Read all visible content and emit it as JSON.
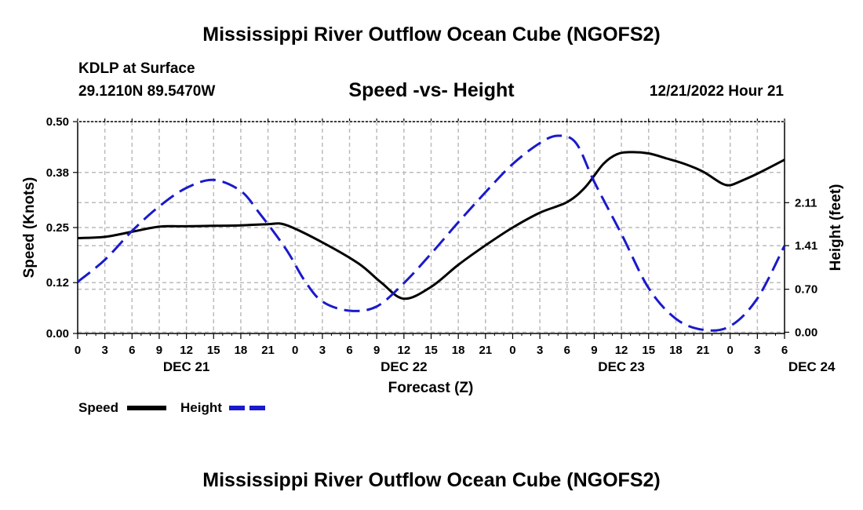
{
  "header": {
    "title": "Mississippi River Outflow Ocean Cube (NGOFS2)",
    "station": "KDLP at Surface",
    "coords": "29.1210N  89.5470W",
    "subtitle": "Speed -vs- Height",
    "datetime": "12/21/2022 Hour 21",
    "footer_title": "Mississippi River Outflow Ocean Cube (NGOFS2)"
  },
  "chart_data": {
    "type": "line",
    "xlabel": "Forecast (Z)",
    "ylabel": "Speed (Knots)",
    "y2label": "Height (feet)",
    "x_ticks": [
      "0",
      "3",
      "6",
      "9",
      "12",
      "15",
      "18",
      "21",
      "0",
      "3",
      "6",
      "9",
      "12",
      "15",
      "18",
      "21",
      "0",
      "3",
      "6",
      "9",
      "12",
      "15",
      "18",
      "21",
      "0",
      "3",
      "6"
    ],
    "day_labels": [
      {
        "label": "DEC 21",
        "hour": 12
      },
      {
        "label": "DEC 22",
        "hour": 36
      },
      {
        "label": "DEC 23",
        "hour": 60
      },
      {
        "label": "DEC 24",
        "hour": 81
      }
    ],
    "xlim": [
      0,
      78
    ],
    "ylim": [
      0,
      0.5
    ],
    "y_ticks": [
      "0.00",
      "0.12",
      "0.25",
      "0.38",
      "0.50"
    ],
    "y2lim": [
      -0.02,
      3.43
    ],
    "y2_ticks": [
      "0.00",
      "0.70",
      "1.41",
      "2.11"
    ],
    "grid": true,
    "legend_position": "bottom-left",
    "series": [
      {
        "name": "Speed",
        "axis": "left",
        "color": "#000000",
        "dash": "solid",
        "x": [
          0,
          3,
          6,
          9,
          12,
          15,
          18,
          21,
          23,
          27,
          31,
          33.5,
          36,
          39,
          42,
          45,
          48,
          51,
          54,
          56,
          58,
          59.5,
          61,
          63,
          65,
          67,
          69,
          71,
          72,
          73,
          75,
          78
        ],
        "values": [
          0.225,
          0.228,
          0.24,
          0.252,
          0.253,
          0.254,
          0.255,
          0.258,
          0.256,
          0.215,
          0.165,
          0.12,
          0.082,
          0.11,
          0.162,
          0.208,
          0.25,
          0.285,
          0.31,
          0.345,
          0.4,
          0.423,
          0.428,
          0.425,
          0.413,
          0.4,
          0.382,
          0.355,
          0.35,
          0.358,
          0.377,
          0.41
        ]
      },
      {
        "name": "Height",
        "axis": "right",
        "color": "#1a1acc",
        "dash": "dashed",
        "x": [
          0,
          3,
          6,
          9,
          12,
          15,
          18,
          20,
          23,
          25,
          27,
          30,
          33,
          36,
          39,
          42,
          45,
          48,
          51,
          53,
          55,
          57,
          60,
          63,
          66,
          69,
          72,
          75,
          78
        ],
        "values": [
          0.82,
          1.18,
          1.65,
          2.05,
          2.35,
          2.48,
          2.3,
          1.95,
          1.35,
          0.85,
          0.5,
          0.35,
          0.42,
          0.8,
          1.28,
          1.79,
          2.28,
          2.74,
          3.08,
          3.2,
          3.08,
          2.45,
          1.6,
          0.72,
          0.22,
          0.04,
          0.1,
          0.55,
          1.41
        ]
      }
    ]
  }
}
